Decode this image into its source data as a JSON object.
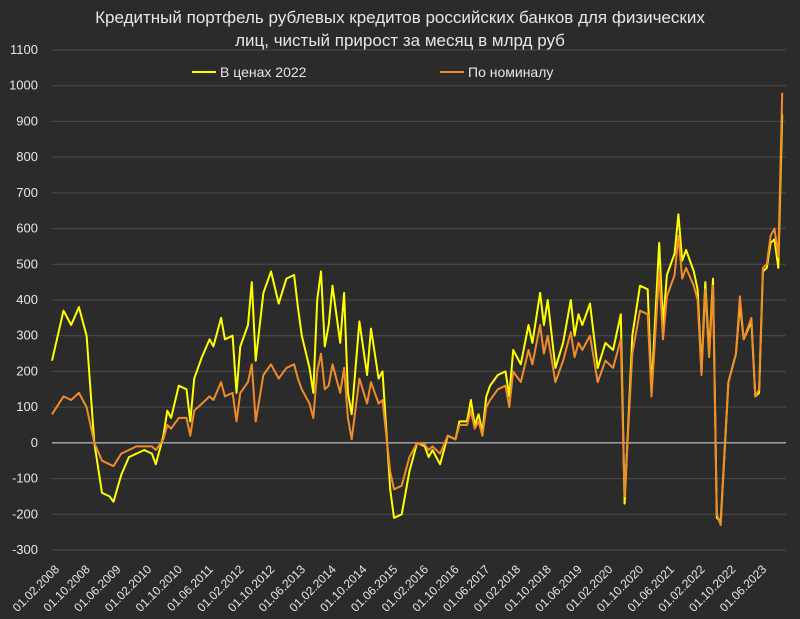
{
  "chart_data": {
    "type": "line",
    "title": "Кредитный портфель рублевых кредитов российских банков для физических лиц, чистый прирост за месяц в млрд руб",
    "title_lines": [
      "Кредитный портфель рублевых кредитов российских банков для физических",
      "лиц, чистый прирост за месяц в млрд руб"
    ],
    "xlabel": "",
    "ylabel": "",
    "ylim": [
      -300,
      1100
    ],
    "yticks": [
      -300,
      -200,
      -100,
      0,
      100,
      200,
      300,
      400,
      500,
      600,
      700,
      800,
      900,
      1000,
      1100
    ],
    "x_range": [
      "2008-02",
      "2023-10"
    ],
    "xtick_labels": [
      "01.02.2008",
      "01.10.2008",
      "01.06.2009",
      "01.02.2010",
      "01.10.2010",
      "01.06.2011",
      "01.02.2012",
      "01.10.2012",
      "01.06.2013",
      "01.02.2014",
      "01.10.2014",
      "01.06.2015",
      "01.02.2016",
      "01.10.2016",
      "01.06.2017",
      "01.02.2018",
      "01.10.2018",
      "01.06.2019",
      "01.02.2020",
      "01.10.2020",
      "01.06.2021",
      "01.02.2022",
      "01.10.2022",
      "01.06.2023"
    ],
    "xtick_dates": [
      "2008-02",
      "2008-10",
      "2009-06",
      "2010-02",
      "2010-10",
      "2011-06",
      "2012-02",
      "2012-10",
      "2013-06",
      "2014-02",
      "2014-10",
      "2015-06",
      "2016-02",
      "2016-10",
      "2017-06",
      "2018-02",
      "2018-10",
      "2019-06",
      "2020-02",
      "2020-10",
      "2021-06",
      "2022-02",
      "2022-10",
      "2023-06"
    ],
    "grid": true,
    "legend": "top",
    "series": [
      {
        "name": "В ценах 2022",
        "color": "#ffff00",
        "points": [
          [
            "2008-02",
            230
          ],
          [
            "2008-05",
            370
          ],
          [
            "2008-07",
            330
          ],
          [
            "2008-09",
            380
          ],
          [
            "2008-11",
            300
          ],
          [
            "2009-01",
            0
          ],
          [
            "2009-03",
            -140
          ],
          [
            "2009-05",
            -150
          ],
          [
            "2009-06",
            -165
          ],
          [
            "2009-08",
            -90
          ],
          [
            "2009-10",
            -40
          ],
          [
            "2009-12",
            -30
          ],
          [
            "2010-02",
            -20
          ],
          [
            "2010-04",
            -30
          ],
          [
            "2010-05",
            -60
          ],
          [
            "2010-07",
            20
          ],
          [
            "2010-08",
            90
          ],
          [
            "2010-09",
            70
          ],
          [
            "2010-11",
            160
          ],
          [
            "2011-01",
            150
          ],
          [
            "2011-02",
            60
          ],
          [
            "2011-03",
            180
          ],
          [
            "2011-05",
            240
          ],
          [
            "2011-07",
            290
          ],
          [
            "2011-08",
            270
          ],
          [
            "2011-10",
            350
          ],
          [
            "2011-11",
            290
          ],
          [
            "2012-01",
            300
          ],
          [
            "2012-02",
            140
          ],
          [
            "2012-03",
            270
          ],
          [
            "2012-05",
            330
          ],
          [
            "2012-06",
            450
          ],
          [
            "2012-07",
            230
          ],
          [
            "2012-09",
            420
          ],
          [
            "2012-11",
            480
          ],
          [
            "2013-01",
            390
          ],
          [
            "2013-03",
            460
          ],
          [
            "2013-05",
            470
          ],
          [
            "2013-06",
            380
          ],
          [
            "2013-07",
            300
          ],
          [
            "2013-09",
            210
          ],
          [
            "2013-10",
            140
          ],
          [
            "2013-11",
            400
          ],
          [
            "2013-12",
            480
          ],
          [
            "2014-01",
            270
          ],
          [
            "2014-02",
            330
          ],
          [
            "2014-03",
            440
          ],
          [
            "2014-05",
            280
          ],
          [
            "2014-06",
            420
          ],
          [
            "2014-07",
            140
          ],
          [
            "2014-08",
            80
          ],
          [
            "2014-10",
            340
          ],
          [
            "2014-12",
            190
          ],
          [
            "2015-01",
            320
          ],
          [
            "2015-03",
            180
          ],
          [
            "2015-04",
            200
          ],
          [
            "2015-06",
            -130
          ],
          [
            "2015-07",
            -210
          ],
          [
            "2015-09",
            -200
          ],
          [
            "2015-11",
            -80
          ],
          [
            "2016-01",
            0
          ],
          [
            "2016-03",
            -10
          ],
          [
            "2016-04",
            -40
          ],
          [
            "2016-05",
            -20
          ],
          [
            "2016-07",
            -60
          ],
          [
            "2016-09",
            20
          ],
          [
            "2016-11",
            10
          ],
          [
            "2016-12",
            60
          ],
          [
            "2017-02",
            60
          ],
          [
            "2017-03",
            120
          ],
          [
            "2017-04",
            50
          ],
          [
            "2017-05",
            80
          ],
          [
            "2017-06",
            30
          ],
          [
            "2017-07",
            130
          ],
          [
            "2017-08",
            160
          ],
          [
            "2017-10",
            190
          ],
          [
            "2017-12",
            200
          ],
          [
            "2018-01",
            130
          ],
          [
            "2018-02",
            260
          ],
          [
            "2018-04",
            220
          ],
          [
            "2018-06",
            330
          ],
          [
            "2018-07",
            280
          ],
          [
            "2018-09",
            420
          ],
          [
            "2018-10",
            330
          ],
          [
            "2018-11",
            400
          ],
          [
            "2019-01",
            210
          ],
          [
            "2019-03",
            280
          ],
          [
            "2019-05",
            400
          ],
          [
            "2019-06",
            300
          ],
          [
            "2019-07",
            360
          ],
          [
            "2019-08",
            330
          ],
          [
            "2019-10",
            390
          ],
          [
            "2019-12",
            210
          ],
          [
            "2020-02",
            280
          ],
          [
            "2020-04",
            260
          ],
          [
            "2020-06",
            360
          ],
          [
            "2020-07",
            -170
          ],
          [
            "2020-09",
            300
          ],
          [
            "2020-11",
            440
          ],
          [
            "2021-01",
            430
          ],
          [
            "2021-02",
            150
          ],
          [
            "2021-04",
            560
          ],
          [
            "2021-05",
            330
          ],
          [
            "2021-06",
            470
          ],
          [
            "2021-08",
            530
          ],
          [
            "2021-09",
            640
          ],
          [
            "2021-10",
            510
          ],
          [
            "2021-11",
            540
          ],
          [
            "2022-01",
            480
          ],
          [
            "2022-02",
            430
          ],
          [
            "2022-03",
            200
          ],
          [
            "2022-04",
            450
          ],
          [
            "2022-05",
            250
          ],
          [
            "2022-06",
            460
          ],
          [
            "2022-07",
            -210
          ],
          [
            "2022-08",
            -220
          ],
          [
            "2022-10",
            170
          ],
          [
            "2022-12",
            250
          ],
          [
            "2023-01",
            390
          ],
          [
            "2023-02",
            290
          ],
          [
            "2023-04",
            340
          ],
          [
            "2023-05",
            130
          ],
          [
            "2023-06",
            140
          ],
          [
            "2023-07",
            480
          ],
          [
            "2023-08",
            490
          ],
          [
            "2023-09",
            560
          ],
          [
            "2023-10",
            570
          ],
          [
            "2023-11",
            490
          ],
          [
            "2023-12",
            920
          ]
        ]
      },
      {
        "name": "По номиналу",
        "color": "#f08c2a",
        "points": [
          [
            "2008-02",
            80
          ],
          [
            "2008-05",
            130
          ],
          [
            "2008-07",
            120
          ],
          [
            "2008-09",
            140
          ],
          [
            "2008-11",
            100
          ],
          [
            "2009-01",
            0
          ],
          [
            "2009-03",
            -50
          ],
          [
            "2009-05",
            -60
          ],
          [
            "2009-06",
            -65
          ],
          [
            "2009-08",
            -30
          ],
          [
            "2009-10",
            -20
          ],
          [
            "2009-12",
            -10
          ],
          [
            "2010-02",
            -10
          ],
          [
            "2010-04",
            -10
          ],
          [
            "2010-05",
            -20
          ],
          [
            "2010-07",
            10
          ],
          [
            "2010-08",
            50
          ],
          [
            "2010-09",
            40
          ],
          [
            "2010-11",
            70
          ],
          [
            "2011-01",
            70
          ],
          [
            "2011-02",
            20
          ],
          [
            "2011-03",
            90
          ],
          [
            "2011-05",
            110
          ],
          [
            "2011-07",
            130
          ],
          [
            "2011-08",
            120
          ],
          [
            "2011-10",
            170
          ],
          [
            "2011-11",
            130
          ],
          [
            "2012-01",
            140
          ],
          [
            "2012-02",
            60
          ],
          [
            "2012-03",
            140
          ],
          [
            "2012-05",
            170
          ],
          [
            "2012-06",
            220
          ],
          [
            "2012-07",
            60
          ],
          [
            "2012-09",
            190
          ],
          [
            "2012-11",
            220
          ],
          [
            "2013-01",
            180
          ],
          [
            "2013-03",
            210
          ],
          [
            "2013-05",
            220
          ],
          [
            "2013-06",
            180
          ],
          [
            "2013-07",
            150
          ],
          [
            "2013-09",
            110
          ],
          [
            "2013-10",
            70
          ],
          [
            "2013-11",
            200
          ],
          [
            "2013-12",
            250
          ],
          [
            "2014-01",
            150
          ],
          [
            "2014-02",
            160
          ],
          [
            "2014-03",
            220
          ],
          [
            "2014-05",
            140
          ],
          [
            "2014-06",
            210
          ],
          [
            "2014-07",
            70
          ],
          [
            "2014-08",
            10
          ],
          [
            "2014-10",
            180
          ],
          [
            "2014-12",
            110
          ],
          [
            "2015-01",
            170
          ],
          [
            "2015-03",
            110
          ],
          [
            "2015-04",
            120
          ],
          [
            "2015-06",
            -80
          ],
          [
            "2015-07",
            -130
          ],
          [
            "2015-09",
            -120
          ],
          [
            "2015-11",
            -40
          ],
          [
            "2016-01",
            0
          ],
          [
            "2016-03",
            -5
          ],
          [
            "2016-04",
            -20
          ],
          [
            "2016-05",
            -10
          ],
          [
            "2016-07",
            -30
          ],
          [
            "2016-09",
            20
          ],
          [
            "2016-11",
            10
          ],
          [
            "2016-12",
            50
          ],
          [
            "2017-02",
            50
          ],
          [
            "2017-03",
            90
          ],
          [
            "2017-04",
            40
          ],
          [
            "2017-05",
            60
          ],
          [
            "2017-06",
            20
          ],
          [
            "2017-07",
            100
          ],
          [
            "2017-08",
            120
          ],
          [
            "2017-10",
            150
          ],
          [
            "2017-12",
            160
          ],
          [
            "2018-01",
            100
          ],
          [
            "2018-02",
            200
          ],
          [
            "2018-04",
            170
          ],
          [
            "2018-06",
            260
          ],
          [
            "2018-07",
            220
          ],
          [
            "2018-09",
            330
          ],
          [
            "2018-10",
            250
          ],
          [
            "2018-11",
            300
          ],
          [
            "2019-01",
            170
          ],
          [
            "2019-03",
            230
          ],
          [
            "2019-05",
            310
          ],
          [
            "2019-06",
            240
          ],
          [
            "2019-07",
            280
          ],
          [
            "2019-08",
            260
          ],
          [
            "2019-10",
            300
          ],
          [
            "2019-12",
            170
          ],
          [
            "2020-02",
            230
          ],
          [
            "2020-04",
            210
          ],
          [
            "2020-06",
            290
          ],
          [
            "2020-07",
            -150
          ],
          [
            "2020-09",
            250
          ],
          [
            "2020-11",
            370
          ],
          [
            "2021-01",
            360
          ],
          [
            "2021-02",
            130
          ],
          [
            "2021-04",
            480
          ],
          [
            "2021-05",
            290
          ],
          [
            "2021-06",
            410
          ],
          [
            "2021-08",
            470
          ],
          [
            "2021-09",
            580
          ],
          [
            "2021-10",
            460
          ],
          [
            "2021-11",
            490
          ],
          [
            "2022-01",
            440
          ],
          [
            "2022-02",
            400
          ],
          [
            "2022-03",
            190
          ],
          [
            "2022-04",
            430
          ],
          [
            "2022-05",
            240
          ],
          [
            "2022-06",
            440
          ],
          [
            "2022-07",
            -200
          ],
          [
            "2022-08",
            -230
          ],
          [
            "2022-10",
            170
          ],
          [
            "2022-12",
            250
          ],
          [
            "2023-01",
            410
          ],
          [
            "2023-02",
            290
          ],
          [
            "2023-04",
            350
          ],
          [
            "2023-05",
            130
          ],
          [
            "2023-06",
            150
          ],
          [
            "2023-07",
            490
          ],
          [
            "2023-08",
            500
          ],
          [
            "2023-09",
            580
          ],
          [
            "2023-10",
            600
          ],
          [
            "2023-11",
            520
          ],
          [
            "2023-12",
            980
          ]
        ]
      }
    ]
  }
}
